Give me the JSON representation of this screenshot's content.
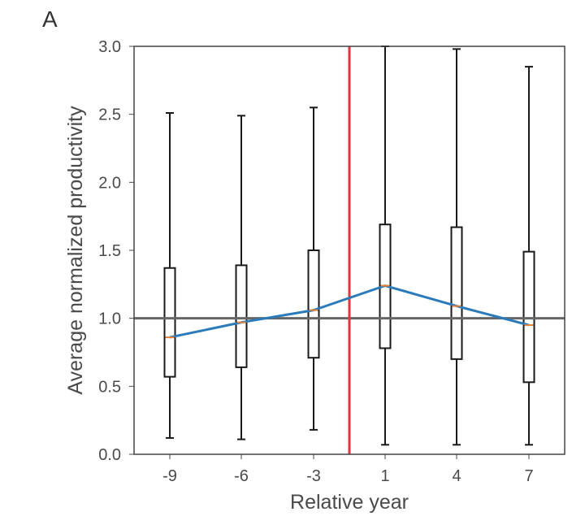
{
  "panel_label": "A",
  "chart_data": {
    "type": "box",
    "xlabel": "Relative year",
    "ylabel": "Average normalized productivity",
    "ylim": [
      0.0,
      3.0
    ],
    "y_ticks": [
      "0.0",
      "0.5",
      "1.0",
      "1.5",
      "2.0",
      "2.5",
      "3.0"
    ],
    "categories": [
      "-9",
      "-6",
      "-3",
      "1",
      "4",
      "7"
    ],
    "boxes": [
      {
        "label": "-9",
        "whisker_low": 0.12,
        "q1": 0.57,
        "median": 0.86,
        "q3": 1.37,
        "whisker_high": 2.51
      },
      {
        "label": "-6",
        "whisker_low": 0.11,
        "q1": 0.64,
        "median": 0.97,
        "q3": 1.39,
        "whisker_high": 2.49
      },
      {
        "label": "-3",
        "whisker_low": 0.18,
        "q1": 0.71,
        "median": 1.06,
        "q3": 1.5,
        "whisker_high": 2.55
      },
      {
        "label": "1",
        "whisker_low": 0.07,
        "q1": 0.78,
        "median": 1.24,
        "q3": 1.69,
        "whisker_high": 3.0
      },
      {
        "label": "4",
        "whisker_low": 0.07,
        "q1": 0.7,
        "median": 1.09,
        "q3": 1.67,
        "whisker_high": 2.98
      },
      {
        "label": "7",
        "whisker_low": 0.07,
        "q1": 0.53,
        "median": 0.95,
        "q3": 1.49,
        "whisker_high": 2.85
      }
    ],
    "median_line": {
      "values": [
        0.86,
        0.97,
        1.06,
        1.24,
        1.09,
        0.95
      ],
      "color": "#2b7bba"
    },
    "reference_hline": {
      "y": 1.0,
      "color": "#666666"
    },
    "event_vline": {
      "between": [
        "-3",
        "1"
      ],
      "color": "#e8323c"
    },
    "colors": {
      "box": "#1a1a1a",
      "median_mark": "#e8843a",
      "frame": "#444444"
    }
  }
}
